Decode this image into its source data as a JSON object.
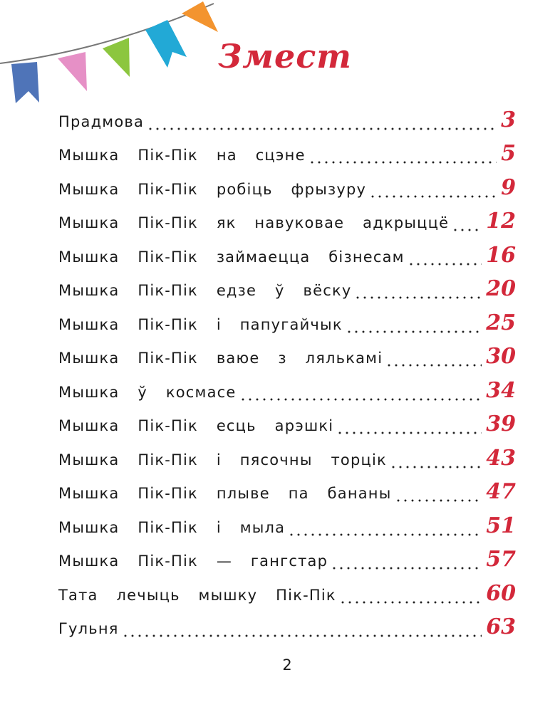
{
  "title": "Змест",
  "entries": [
    {
      "label": "Прадмова",
      "page": "3"
    },
    {
      "label": "Мышка Пік-Пік на сцэне",
      "page": "5"
    },
    {
      "label": "Мышка Пік-Пік робіць фрызуру",
      "page": "9"
    },
    {
      "label": "Мышка Пік-Пік як навуковае адкрыццё",
      "page": "12"
    },
    {
      "label": "Мышка Пік-Пік займаецца бізнесам",
      "page": "16"
    },
    {
      "label": "Мышка Пік-Пік едзе ў вёску",
      "page": "20"
    },
    {
      "label": "Мышка Пік-Пік і папугайчык",
      "page": "25"
    },
    {
      "label": "Мышка Пік-Пік ваюе з лялькамі",
      "page": "30"
    },
    {
      "label": "Мышка ў космасе",
      "page": "34"
    },
    {
      "label": "Мышка Пік-Пік есць арэшкі",
      "page": "39"
    },
    {
      "label": "Мышка Пік-Пік і пясочны торцік",
      "page": "43"
    },
    {
      "label": "Мышка Пік-Пік плыве па бананы",
      "page": "47"
    },
    {
      "label": "Мышка Пік-Пік і мыла",
      "page": "51"
    },
    {
      "label": "Мышка Пік-Пік — гангстар",
      "page": "57"
    },
    {
      "label": "Тата лечыць мышку Пік-Пік",
      "page": "60"
    },
    {
      "label": "Гульня",
      "page": "63"
    }
  ],
  "page_number": "2",
  "colors": {
    "accent": "#d3283a",
    "flags": [
      "#4f74b8",
      "#e690c6",
      "#8cc63f",
      "#22a9d6",
      "#f3942f"
    ]
  }
}
